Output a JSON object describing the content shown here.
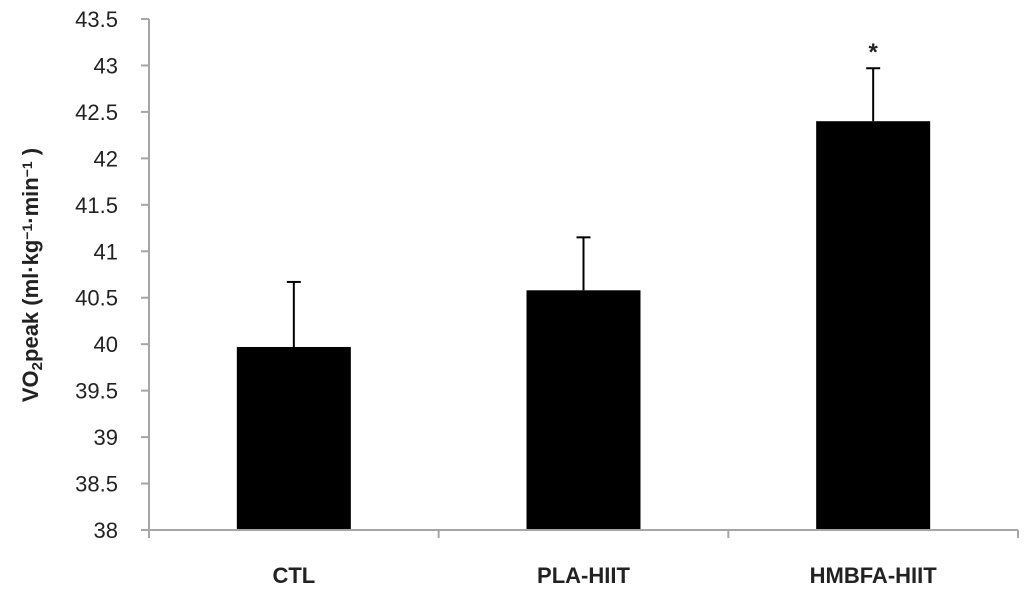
{
  "chart_data": {
    "type": "bar",
    "title": "",
    "xlabel": "",
    "ylabel_parts": [
      {
        "text": "VO",
        "style": "normal"
      },
      {
        "text": "2",
        "style": "sub"
      },
      {
        "text": "peak (ml·kg",
        "style": "normal"
      },
      {
        "text": "−1",
        "style": "sup"
      },
      {
        "text": "·min",
        "style": "normal"
      },
      {
        "text": "−1",
        "style": "sup"
      },
      {
        "text": " )",
        "style": "normal"
      }
    ],
    "ylim": [
      38,
      43.5
    ],
    "yticks": [
      "38",
      "38.5",
      "39",
      "39.5",
      "40",
      "40.5",
      "41",
      "41.5",
      "42",
      "42.5",
      "43",
      "43.5"
    ],
    "categories": [
      "CTL",
      "PLA-HIIT",
      "HMBFA-HIIT"
    ],
    "values": [
      39.97,
      40.58,
      42.4
    ],
    "error_upper": [
      0.7,
      0.57,
      0.57
    ],
    "annotations": [
      "",
      "",
      "*"
    ],
    "grid": false,
    "bar_color": "#000000",
    "axis_color": "#a6a6a6"
  }
}
